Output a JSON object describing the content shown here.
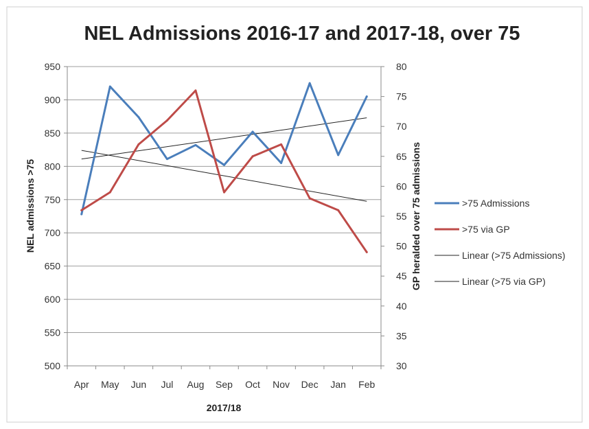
{
  "chart_data": {
    "type": "line",
    "title": "NEL Admissions 2016-17 and 2017-18,  over 75",
    "xlabel": "2017/18",
    "ylabel": "NEL admissions >75",
    "y2label": "GP heralded over 75 admissions",
    "categories": [
      "Apr",
      "May",
      "Jun",
      "Jul",
      "Aug",
      "Sep",
      "Oct",
      "Nov",
      "Dec",
      "Jan",
      "Feb"
    ],
    "ylim": [
      500,
      950
    ],
    "y_ticks": [
      "950",
      "900",
      "850",
      "800",
      "750",
      "700",
      "650",
      "600",
      "550",
      "500"
    ],
    "y2lim": [
      30,
      80
    ],
    "y2_ticks": [
      "80",
      "75",
      "70",
      "65",
      "60",
      "55",
      "50",
      "45",
      "40",
      "35",
      "30"
    ],
    "grid": true,
    "legend_position": "right",
    "series": [
      {
        "name": ">75 Admissions",
        "axis": "left",
        "color": "#4a7ebb",
        "values": [
          728,
          920,
          874,
          811,
          832,
          802,
          852,
          805,
          925,
          817,
          905
        ]
      },
      {
        "name": ">75 via GP",
        "axis": "right",
        "color": "#be4b48",
        "values": [
          56,
          59,
          67,
          71,
          76,
          59,
          65,
          67,
          58,
          56,
          49
        ]
      }
    ],
    "trendlines": [
      {
        "name": "Linear (>75 Admissions)",
        "axis": "left",
        "color": "#222222",
        "start": 811,
        "end": 873
      },
      {
        "name": "Linear (>75 via GP)",
        "axis": "right",
        "color": "#222222",
        "start": 66,
        "end": 57.5
      }
    ]
  }
}
